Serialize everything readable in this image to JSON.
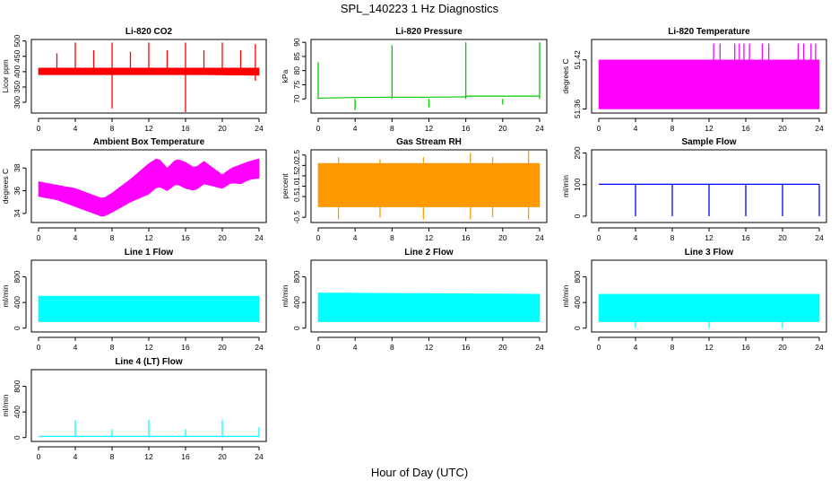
{
  "figure": {
    "title": "SPL_140223  1 Hz Diagnostics",
    "xlabel": "Hour of Day (UTC)"
  },
  "chart_data": [
    {
      "type": "line",
      "title": "Li-820 CO2",
      "ylabel": "Licor ppm",
      "color": "#ff0000",
      "xlim": [
        0,
        24
      ],
      "ylim": [
        265,
        505
      ],
      "xticks": [
        "0",
        "4",
        "8",
        "12",
        "16",
        "20",
        "24"
      ],
      "yticks": [
        "300",
        "350",
        "400",
        "450",
        "500"
      ],
      "series": [
        {
          "kind": "band",
          "x": [
            0,
            6,
            12,
            18,
            24
          ],
          "low": [
            390,
            390,
            390,
            390,
            388
          ],
          "high": [
            412,
            412,
            412,
            412,
            412
          ]
        },
        {
          "kind": "spikes",
          "x": [
            2,
            4,
            6,
            8,
            10,
            12,
            14,
            16,
            18,
            20,
            22,
            23.6
          ],
          "high": [
            460,
            495,
            470,
            495,
            465,
            495,
            470,
            495,
            470,
            495,
            470,
            490
          ],
          "low": [
            395,
            395,
            395,
            280,
            395,
            395,
            395,
            260,
            395,
            395,
            395,
            370
          ]
        }
      ]
    },
    {
      "type": "line",
      "title": "Li-820 Pressure",
      "ylabel": "kPa",
      "color": "#00cc00",
      "xlim": [
        0,
        24
      ],
      "ylim": [
        65,
        91
      ],
      "xticks": [
        "0",
        "4",
        "8",
        "12",
        "16",
        "20",
        "24"
      ],
      "yticks": [
        "70",
        "75",
        "80",
        "85",
        "90"
      ],
      "series": [
        {
          "kind": "line",
          "x": [
            0,
            0.3,
            4,
            8,
            12,
            15.9,
            16.1,
            20,
            24
          ],
          "y": [
            70.2,
            70.3,
            70.5,
            70.6,
            70.6,
            70.7,
            71.0,
            71.0,
            71.0
          ]
        },
        {
          "kind": "spikes",
          "x": [
            0,
            4,
            8,
            12,
            16,
            20,
            24
          ],
          "high": [
            83,
            70,
            89,
            70,
            90,
            70,
            90
          ],
          "low": [
            70,
            66,
            70,
            67,
            70,
            68,
            70
          ]
        }
      ]
    },
    {
      "type": "line",
      "title": "Li-820 Temperature",
      "ylabel": "degrees C",
      "color": "#ff00ff",
      "xlim": [
        0,
        24
      ],
      "ylim": [
        51.355,
        51.445
      ],
      "xticks": [
        "0",
        "4",
        "8",
        "12",
        "16",
        "20",
        "24"
      ],
      "yticks": [
        "51.36",
        "51.42"
      ],
      "series": [
        {
          "kind": "band",
          "x": [
            0,
            24
          ],
          "low": [
            51.36,
            51.36
          ],
          "high": [
            51.42,
            51.42
          ]
        },
        {
          "kind": "spikes",
          "x": [
            12.5,
            13.2,
            14.8,
            15.3,
            15.8,
            16.4,
            17.8,
            18.5,
            21.7,
            22.3,
            23.1,
            23.6
          ],
          "high": [
            51.44,
            51.44,
            51.44,
            51.44,
            51.44,
            51.44,
            51.44,
            51.44,
            51.44,
            51.44,
            51.44,
            51.44
          ],
          "low": [
            51.42,
            51.42,
            51.42,
            51.42,
            51.42,
            51.42,
            51.42,
            51.42,
            51.42,
            51.42,
            51.42,
            51.42
          ]
        }
      ]
    },
    {
      "type": "line",
      "title": "Ambient Box Temperature",
      "ylabel": "degrees C",
      "color": "#ff00ff",
      "xlim": [
        0,
        24
      ],
      "ylim": [
        33.2,
        39.6
      ],
      "xticks": [
        "0",
        "4",
        "8",
        "12",
        "16",
        "20",
        "24"
      ],
      "yticks": [
        "34",
        "36",
        "38"
      ],
      "series": [
        {
          "kind": "band",
          "x": [
            0,
            2,
            4,
            6,
            7,
            8,
            10,
            12,
            13,
            14,
            15,
            16,
            17,
            18,
            19,
            20,
            21,
            22,
            23,
            24
          ],
          "low": [
            35.5,
            35.2,
            34.6,
            34.0,
            33.7,
            34.1,
            35.0,
            35.7,
            36.4,
            36.0,
            36.6,
            36.2,
            36.0,
            36.6,
            36.4,
            36.2,
            36.7,
            36.6,
            37.0,
            37.1
          ],
          "high": [
            36.8,
            36.5,
            36.2,
            35.6,
            35.3,
            35.8,
            37.0,
            38.4,
            38.9,
            38.0,
            38.8,
            38.5,
            38.0,
            38.6,
            38.0,
            37.4,
            38.0,
            38.3,
            38.6,
            38.8
          ]
        }
      ]
    },
    {
      "type": "line",
      "title": "Gas Stream RH",
      "ylabel": "percent",
      "color": "#ff9900",
      "xlim": [
        0,
        24
      ],
      "ylim": [
        -0.75,
        2.75
      ],
      "xticks": [
        "0",
        "4",
        "8",
        "12",
        "16",
        "20",
        "24"
      ],
      "yticks": [
        "-0.5",
        "0.5",
        "1.0",
        "1.5",
        "2.0",
        "2.5"
      ],
      "series": [
        {
          "kind": "band",
          "x": [
            0,
            24
          ],
          "low": [
            0.0,
            0.0
          ],
          "high": [
            2.1,
            2.1
          ]
        },
        {
          "kind": "spikes",
          "x": [
            2.2,
            6.7,
            11.4,
            16.5,
            18.9,
            22.8
          ],
          "high": [
            2.4,
            2.3,
            2.4,
            2.6,
            2.4,
            2.7
          ],
          "low": [
            -0.6,
            -0.5,
            -0.6,
            -0.6,
            -0.5,
            -0.6
          ]
        }
      ]
    },
    {
      "type": "line",
      "title": "Sample Flow",
      "ylabel": "ml/min",
      "color": "#0000ff",
      "xlim": [
        0,
        24
      ],
      "ylim": [
        -20,
        210
      ],
      "xticks": [
        "0",
        "4",
        "8",
        "12",
        "16",
        "20",
        "24"
      ],
      "yticks": [
        "0",
        "100",
        "200"
      ],
      "series": [
        {
          "kind": "line",
          "x": [
            0,
            24
          ],
          "y": [
            101,
            101
          ]
        },
        {
          "kind": "spikes",
          "x": [
            4,
            8,
            12,
            16,
            20,
            24
          ],
          "high": [
            101,
            101,
            101,
            101,
            101,
            101
          ],
          "low": [
            0,
            0,
            0,
            0,
            0,
            0
          ]
        }
      ]
    },
    {
      "type": "line",
      "title": "Line 1 Flow",
      "ylabel": "ml/min",
      "color": "#00ffff",
      "xlim": [
        0,
        24
      ],
      "ylim": [
        -60,
        1060
      ],
      "xticks": [
        "0",
        "4",
        "8",
        "12",
        "16",
        "20",
        "24"
      ],
      "yticks": [
        "0",
        "400",
        "800"
      ],
      "series": [
        {
          "kind": "band",
          "x": [
            0,
            24
          ],
          "low": [
            100,
            100
          ],
          "high": [
            500,
            500
          ]
        }
      ]
    },
    {
      "type": "line",
      "title": "Line 2 Flow",
      "ylabel": "ml/min",
      "color": "#00ffff",
      "xlim": [
        0,
        24
      ],
      "ylim": [
        -60,
        1060
      ],
      "xticks": [
        "0",
        "4",
        "8",
        "12",
        "16",
        "20",
        "24"
      ],
      "yticks": [
        "0",
        "400",
        "800"
      ],
      "series": [
        {
          "kind": "band",
          "x": [
            0,
            24
          ],
          "low": [
            100,
            100
          ],
          "high": [
            550,
            530
          ]
        }
      ]
    },
    {
      "type": "line",
      "title": "Line 3 Flow",
      "ylabel": "ml/min",
      "color": "#00ffff",
      "xlim": [
        0,
        24
      ],
      "ylim": [
        -60,
        1060
      ],
      "xticks": [
        "0",
        "4",
        "8",
        "12",
        "16",
        "20",
        "24"
      ],
      "yticks": [
        "0",
        "400",
        "800"
      ],
      "series": [
        {
          "kind": "band",
          "x": [
            0,
            24
          ],
          "low": [
            100,
            100
          ],
          "high": [
            530,
            530
          ]
        },
        {
          "kind": "spikes",
          "x": [
            4,
            12,
            20
          ],
          "high": [
            100,
            100,
            100
          ],
          "low": [
            0,
            0,
            0
          ]
        }
      ]
    },
    {
      "type": "line",
      "title": "Line 4 (LT) Flow",
      "ylabel": "ml/min",
      "color": "#00ffff",
      "xlim": [
        0,
        24
      ],
      "ylim": [
        -60,
        1060
      ],
      "xticks": [
        "0",
        "4",
        "8",
        "12",
        "16",
        "20",
        "24"
      ],
      "yticks": [
        "0",
        "400",
        "800"
      ],
      "series": [
        {
          "kind": "line",
          "x": [
            0,
            24
          ],
          "y": [
            18,
            18
          ]
        },
        {
          "kind": "spikes",
          "x": [
            4,
            8,
            12,
            16,
            20,
            24
          ],
          "high": [
            270,
            130,
            280,
            130,
            280,
            160
          ],
          "low": [
            18,
            18,
            18,
            18,
            18,
            18
          ]
        }
      ]
    }
  ]
}
